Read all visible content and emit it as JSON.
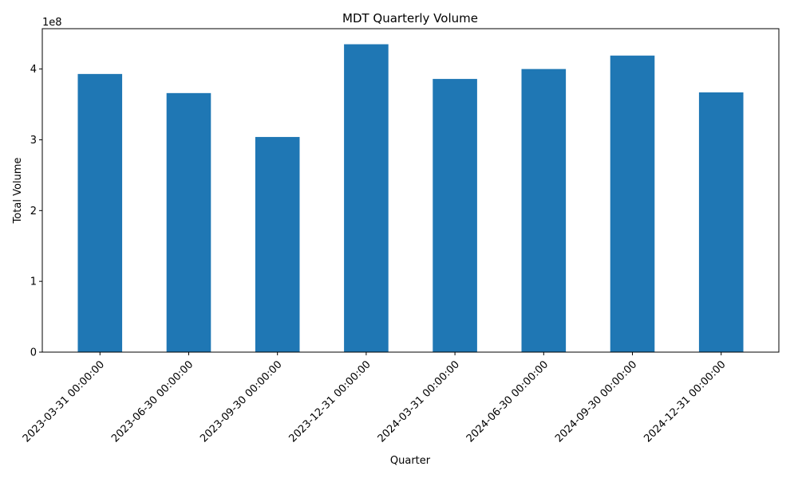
{
  "chart_data": {
    "type": "bar",
    "title": "MDT Quarterly Volume",
    "xlabel": "Quarter",
    "ylabel": "Total Volume",
    "y_offset_label": "1e8",
    "categories": [
      "2023-03-31 00:00:00",
      "2023-06-30 00:00:00",
      "2023-09-30 00:00:00",
      "2023-12-31 00:00:00",
      "2024-03-31 00:00:00",
      "2024-06-30 00:00:00",
      "2024-09-30 00:00:00",
      "2024-12-31 00:00:00"
    ],
    "values": [
      393000000,
      366000000,
      304000000,
      435000000,
      386000000,
      400000000,
      419000000,
      367000000
    ],
    "ylim": [
      0,
      457000000
    ],
    "yticks": [
      0,
      100000000,
      200000000,
      300000000,
      400000000
    ],
    "ytick_labels": [
      "0",
      "1",
      "2",
      "3",
      "4"
    ],
    "bar_color": "#1f77b4",
    "grid": false,
    "legend": "none"
  }
}
